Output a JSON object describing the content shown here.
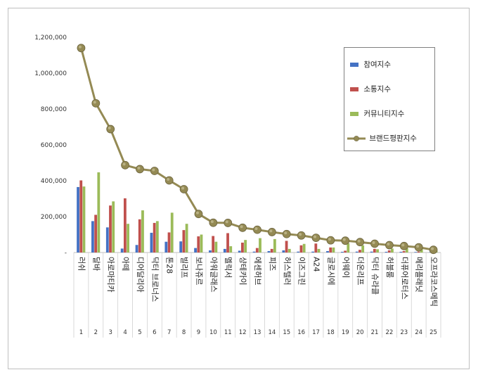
{
  "chart_data": {
    "type": "bar+line",
    "categories": [
      "러쉬",
      "달바",
      "아로마티카",
      "아떼",
      "디어달리아",
      "닥터 브로너스",
      "톤28",
      "빌리프",
      "보나쥬르",
      "아워글래스",
      "멜릭서",
      "샹테카이",
      "에센허브",
      "피즈",
      "허스텔러",
      "이즈그린",
      "A24",
      "글로시에",
      "어웨이",
      "더온리프",
      "닥터 슈라클",
      "허블룸",
      "더퓨어로터스",
      "메리플래닛",
      "오프라코스메틱"
    ],
    "ranks": [
      "1",
      "2",
      "3",
      "4",
      "5",
      "6",
      "7",
      "8",
      "9",
      "10",
      "11",
      "12",
      "13",
      "14",
      "15",
      "16",
      "17",
      "18",
      "19",
      "20",
      "21",
      "22",
      "23",
      "24",
      "25"
    ],
    "series": [
      {
        "name": "참여지수",
        "kind": "bar",
        "color": "#4472c4",
        "values": [
          365000,
          175000,
          140000,
          22000,
          42000,
          110000,
          60000,
          62000,
          25000,
          12000,
          20000,
          10000,
          5000,
          8000,
          12000,
          5000,
          5000,
          8000,
          4000,
          5000,
          5000,
          4000,
          4000,
          3000,
          2000
        ]
      },
      {
        "name": "소통지수",
        "kind": "bar",
        "color": "#c0504d",
        "values": [
          402000,
          210000,
          262000,
          302000,
          185000,
          165000,
          112000,
          125000,
          90000,
          92000,
          108000,
          55000,
          25000,
          20000,
          65000,
          40000,
          50000,
          28000,
          10000,
          15000,
          20000,
          12000,
          8000,
          5000,
          3000
        ]
      },
      {
        "name": "커뮤니티지수",
        "kind": "bar",
        "color": "#9bbb59",
        "values": [
          368000,
          447000,
          285000,
          160000,
          235000,
          175000,
          222000,
          160000,
          100000,
          60000,
          35000,
          70000,
          80000,
          75000,
          20000,
          48000,
          20000,
          28000,
          52000,
          40000,
          18000,
          22000,
          24000,
          20000,
          10000
        ]
      },
      {
        "name": "브랜드평판지수",
        "kind": "line",
        "color": "#948a54",
        "values": [
          1140000,
          832000,
          688000,
          487000,
          465000,
          455000,
          402000,
          353000,
          215000,
          166000,
          165000,
          138000,
          127000,
          114000,
          103000,
          95000,
          82000,
          68000,
          66000,
          58000,
          49000,
          41000,
          36000,
          29000,
          15000
        ]
      }
    ],
    "yticks": [
      "-",
      "200,000",
      "400,000",
      "600,000",
      "800,000",
      "1,000,000",
      "1,200,000"
    ],
    "ylim": [
      0,
      1200000
    ],
    "grid": false,
    "legend_position": "right"
  }
}
